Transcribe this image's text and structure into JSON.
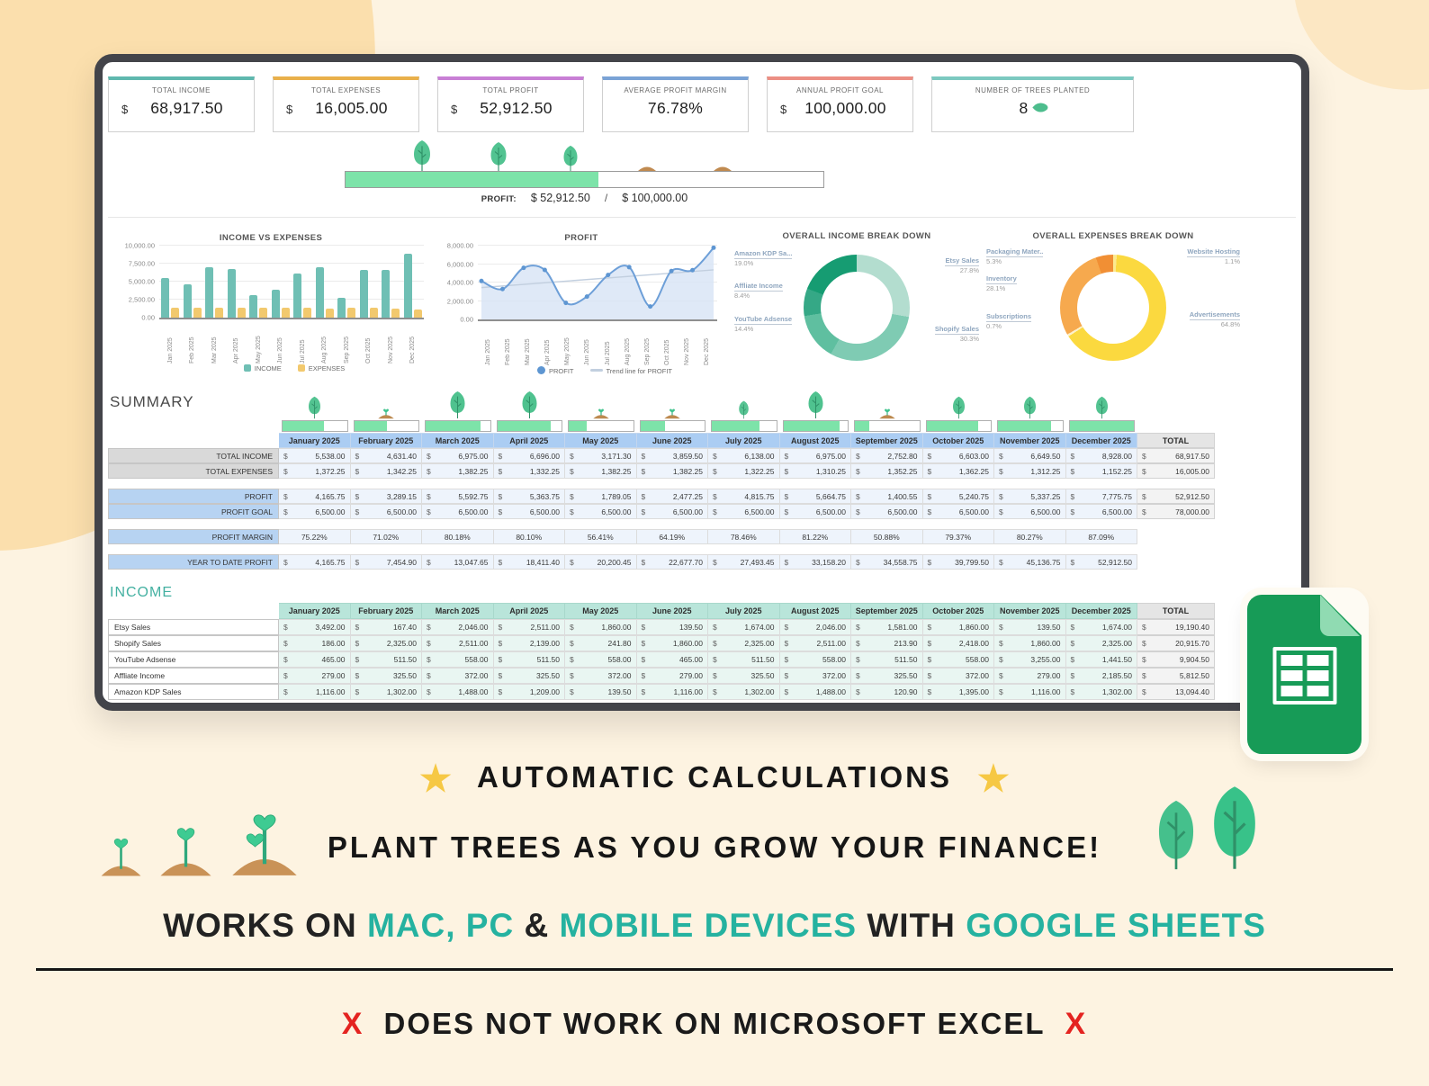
{
  "kpi_cards": [
    {
      "label": "TOTAL INCOME",
      "currency": "$",
      "value": "68,917.50",
      "accent": "#5fb8ae"
    },
    {
      "label": "TOTAL EXPENSES",
      "currency": "$",
      "value": "16,005.00",
      "accent": "#e9b04b"
    },
    {
      "label": "TOTAL PROFIT",
      "currency": "$",
      "value": "52,912.50",
      "accent": "#c87fd5"
    },
    {
      "label": "AVERAGE PROFIT MARGIN",
      "currency": "",
      "value": "76.78%",
      "accent": "#7aa3d6"
    },
    {
      "label": "ANNUAL PROFIT GOAL",
      "currency": "$",
      "value": "100,000.00",
      "accent": "#ec8f84"
    },
    {
      "label": "NUMBER OF TREES PLANTED",
      "currency": "",
      "value": "8",
      "accent": "#7cc9c0"
    }
  ],
  "hero_progress": {
    "label": "PROFIT:",
    "current": "$ 52,912.50",
    "divider": "/",
    "goal": "$ 100,000.00",
    "percent": 52.9,
    "trees_pct": [
      16,
      32,
      47
    ],
    "mounds_pct": [
      63,
      79
    ]
  },
  "chart_data": [
    {
      "type": "bar",
      "title": "INCOME VS EXPENSES",
      "categories": [
        "Jan 2025",
        "Feb 2025",
        "Mar 2025",
        "Apr 2025",
        "May 2025",
        "Jun 2025",
        "Jul 2025",
        "Aug 2025",
        "Sep 2025",
        "Oct 2025",
        "Nov 2025",
        "Dec 2025"
      ],
      "series": [
        {
          "name": "INCOME",
          "color": "#6fbfb4",
          "values": [
            5538,
            4631.4,
            6975,
            6696,
            3171.3,
            3859.5,
            6138,
            6975,
            2752.8,
            6603,
            6649.5,
            8928
          ]
        },
        {
          "name": "EXPENSES",
          "color": "#f2c96e",
          "values": [
            1372.25,
            1342.25,
            1382.25,
            1332.25,
            1382.25,
            1382.25,
            1322.25,
            1310.25,
            1352.25,
            1362.25,
            1312.25,
            1152.25
          ]
        }
      ],
      "ylim": [
        0,
        10000
      ],
      "yticks": [
        "0.00",
        "2,500.00",
        "5,000.00",
        "7,500.00",
        "10,000.00"
      ],
      "grid": true,
      "legend_position": "bottom"
    },
    {
      "type": "area",
      "title": "PROFIT",
      "categories": [
        "Jan 2025",
        "Feb 2025",
        "Mar 2025",
        "Apr 2025",
        "May 2025",
        "Jun 2025",
        "Jul 2025",
        "Aug 2025",
        "Sep 2025",
        "Oct 2025",
        "Nov 2025",
        "Dec 2025"
      ],
      "series": [
        {
          "name": "PROFIT",
          "color": "#6d9fd8",
          "fill": "#d7e4f5",
          "values": [
            4165.75,
            3289.15,
            5592.75,
            5363.75,
            1789.05,
            2477.25,
            4815.75,
            5664.75,
            1400.55,
            5240.75,
            5337.25,
            7775.75
          ]
        }
      ],
      "trend": {
        "name": "Trend line for PROFIT",
        "color": "#c2cfdf"
      },
      "ylim": [
        0,
        8000
      ],
      "yticks": [
        "0.00",
        "2,000.00",
        "4,000.00",
        "6,000.00",
        "8,000.00"
      ],
      "grid": true,
      "legend_position": "bottom"
    },
    {
      "type": "pie",
      "title": "OVERALL INCOME BREAK DOWN",
      "slices": [
        {
          "label": "Etsy Sales",
          "pct": 27.8,
          "pct_label": "27.8%",
          "color": "#b3ddcf"
        },
        {
          "label": "Shopify Sales",
          "pct": 30.3,
          "pct_label": "30.3%",
          "color": "#7fcbb3"
        },
        {
          "label": "YouTube Adsense",
          "pct": 14.4,
          "pct_label": "14.4%",
          "color": "#5fbfa0"
        },
        {
          "label": "Affliate Income",
          "pct": 8.4,
          "pct_label": "8.4%",
          "color": "#35a886"
        },
        {
          "label": "Amazon KDP Sa...",
          "pct": 19.0,
          "pct_label": "19.0%",
          "color": "#169c72"
        }
      ]
    },
    {
      "type": "pie",
      "title": "OVERALL EXPENSES BREAK DOWN",
      "slices": [
        {
          "label": "Website Hosting",
          "pct": 1.1,
          "pct_label": "1.1%",
          "color": "#fce98f"
        },
        {
          "label": "Advertisements",
          "pct": 64.8,
          "pct_label": "64.8%",
          "color": "#fbd93f"
        },
        {
          "label": "Subscriptions",
          "pct": 0.7,
          "pct_label": "0.7%",
          "color": "#fdf0c8"
        },
        {
          "label": "Inventory",
          "pct": 28.1,
          "pct_label": "28.1%",
          "color": "#f6a94e"
        },
        {
          "label": "Packaging Mater..",
          "pct": 5.3,
          "pct_label": "5.3%",
          "color": "#f18f34"
        }
      ]
    }
  ],
  "summary": {
    "title": "SUMMARY",
    "columns": [
      "January 2025",
      "February 2025",
      "March 2025",
      "April 2025",
      "May 2025",
      "June 2025",
      "July 2025",
      "August 2025",
      "September 2025",
      "October 2025",
      "November 2025",
      "December 2025"
    ],
    "total_header": "TOTAL",
    "progress": [
      {
        "fill": 64,
        "plant": "tree-md"
      },
      {
        "fill": 51,
        "plant": "sprout"
      },
      {
        "fill": 86,
        "plant": "tree-lg"
      },
      {
        "fill": 83,
        "plant": "tree-lg"
      },
      {
        "fill": 28,
        "plant": "sprout"
      },
      {
        "fill": 38,
        "plant": "sprout"
      },
      {
        "fill": 74,
        "plant": "tree-sm"
      },
      {
        "fill": 87,
        "plant": "tree-lg"
      },
      {
        "fill": 22,
        "plant": "sprout"
      },
      {
        "fill": 81,
        "plant": "tree-md"
      },
      {
        "fill": 82,
        "plant": "tree-md"
      },
      {
        "fill": 100,
        "plant": "tree-md"
      }
    ],
    "rows": [
      {
        "label": "TOTAL INCOME",
        "label_style": "gray",
        "dollar": true,
        "gap": false,
        "values": [
          "5,538.00",
          "4,631.40",
          "6,975.00",
          "6,696.00",
          "3,171.30",
          "3,859.50",
          "6,138.00",
          "6,975.00",
          "2,752.80",
          "6,603.00",
          "6,649.50",
          "8,928.00"
        ],
        "total": "68,917.50"
      },
      {
        "label": "TOTAL EXPENSES",
        "label_style": "gray",
        "dollar": true,
        "gap": false,
        "values": [
          "1,372.25",
          "1,342.25",
          "1,382.25",
          "1,332.25",
          "1,382.25",
          "1,382.25",
          "1,322.25",
          "1,310.25",
          "1,352.25",
          "1,362.25",
          "1,312.25",
          "1,152.25"
        ],
        "total": "16,005.00"
      },
      {
        "label": "PROFIT",
        "label_style": "blue",
        "dollar": true,
        "gap": true,
        "values": [
          "4,165.75",
          "3,289.15",
          "5,592.75",
          "5,363.75",
          "1,789.05",
          "2,477.25",
          "4,815.75",
          "5,664.75",
          "1,400.55",
          "5,240.75",
          "5,337.25",
          "7,775.75"
        ],
        "total": "52,912.50"
      },
      {
        "label": "PROFIT GOAL",
        "label_style": "blue",
        "dollar": true,
        "gap": false,
        "values": [
          "6,500.00",
          "6,500.00",
          "6,500.00",
          "6,500.00",
          "6,500.00",
          "6,500.00",
          "6,500.00",
          "6,500.00",
          "6,500.00",
          "6,500.00",
          "6,500.00",
          "6,500.00"
        ],
        "total": "78,000.00"
      },
      {
        "label": "PROFIT MARGIN",
        "label_style": "blue",
        "dollar": false,
        "gap": true,
        "values": [
          "75.22%",
          "71.02%",
          "80.18%",
          "80.10%",
          "56.41%",
          "64.19%",
          "78.46%",
          "81.22%",
          "50.88%",
          "79.37%",
          "80.27%",
          "87.09%"
        ],
        "total": ""
      },
      {
        "label": "YEAR TO DATE PROFIT",
        "label_style": "blue",
        "dollar": true,
        "gap": true,
        "values": [
          "4,165.75",
          "7,454.90",
          "13,047.65",
          "18,411.40",
          "20,200.45",
          "22,677.70",
          "27,493.45",
          "33,158.20",
          "34,558.75",
          "39,799.50",
          "45,136.75",
          "52,912.50"
        ],
        "total": ""
      }
    ]
  },
  "income": {
    "title": "INCOME",
    "columns": [
      "January 2025",
      "February 2025",
      "March 2025",
      "April 2025",
      "May 2025",
      "June 2025",
      "July 2025",
      "August 2025",
      "September 2025",
      "October 2025",
      "November 2025",
      "December 2025"
    ],
    "total_header": "TOTAL",
    "rows": [
      {
        "label": "Etsy Sales",
        "label_style": "plain",
        "dollar": true,
        "gap": false,
        "values": [
          "3,492.00",
          "167.40",
          "2,046.00",
          "2,511.00",
          "1,860.00",
          "139.50",
          "1,674.00",
          "2,046.00",
          "1,581.00",
          "1,860.00",
          "139.50",
          "1,674.00"
        ],
        "total": "19,190.40"
      },
      {
        "label": "Shopify Sales",
        "label_style": "plain",
        "dollar": true,
        "gap": false,
        "values": [
          "186.00",
          "2,325.00",
          "2,511.00",
          "2,139.00",
          "241.80",
          "1,860.00",
          "2,325.00",
          "2,511.00",
          "213.90",
          "2,418.00",
          "1,860.00",
          "2,325.00"
        ],
        "total": "20,915.70"
      },
      {
        "label": "YouTube Adsense",
        "label_style": "plain",
        "dollar": true,
        "gap": false,
        "values": [
          "465.00",
          "511.50",
          "558.00",
          "511.50",
          "558.00",
          "465.00",
          "511.50",
          "558.00",
          "511.50",
          "558.00",
          "3,255.00",
          "1,441.50"
        ],
        "total": "9,904.50"
      },
      {
        "label": "Affliate Income",
        "label_style": "plain",
        "dollar": true,
        "gap": false,
        "values": [
          "279.00",
          "325.50",
          "372.00",
          "325.50",
          "372.00",
          "279.00",
          "325.50",
          "372.00",
          "325.50",
          "372.00",
          "279.00",
          "2,185.50"
        ],
        "total": "5,812.50"
      },
      {
        "label": "Amazon KDP Sales",
        "label_style": "plain",
        "dollar": true,
        "gap": false,
        "values": [
          "1,116.00",
          "1,302.00",
          "1,488.00",
          "1,209.00",
          "139.50",
          "1,116.00",
          "1,302.00",
          "1,488.00",
          "120.90",
          "1,395.00",
          "1,116.00",
          "1,302.00"
        ],
        "total": "13,094.40"
      }
    ]
  },
  "footer": {
    "star_icon": "★",
    "feature_1": "AUTOMATIC CALCULATIONS",
    "feature_2": "PLANT TREES AS YOU GROW YOUR FINANCE!",
    "compat_segments": [
      {
        "text": "WORKS ON ",
        "highlight": false
      },
      {
        "text": "MAC, PC",
        "highlight": true
      },
      {
        "text": " & ",
        "highlight": false
      },
      {
        "text": "MOBILE DEVICES",
        "highlight": true
      },
      {
        "text": " WITH ",
        "highlight": false
      },
      {
        "text": "GOOGLE SHEETS",
        "highlight": true
      }
    ],
    "warning_mark": "X",
    "warning_text": "DOES NOT WORK ON MICROSOFT EXCEL",
    "highlight_color": "#25b2a0",
    "warning_color": "#e42320"
  }
}
